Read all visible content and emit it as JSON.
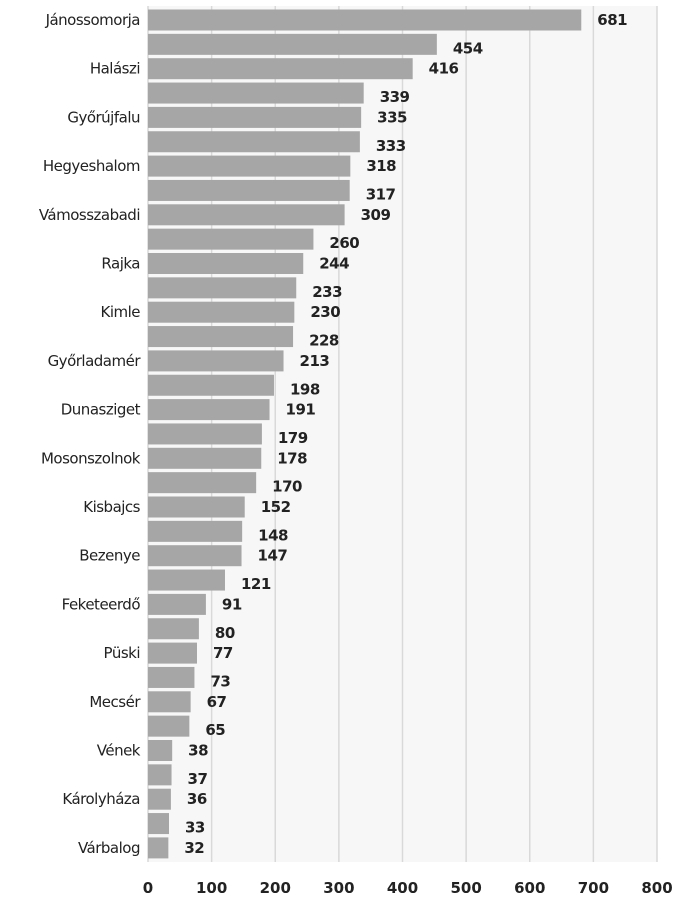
{
  "chart_data": {
    "type": "bar",
    "orientation": "horizontal",
    "categories": [
      "Jánossomorja",
      "",
      "Halászi",
      "",
      "Győrújfalu",
      "",
      "Hegyeshalom",
      "",
      "Vámosszabadi",
      "",
      "Rajka",
      "",
      "Kimle",
      "",
      "Győrladamér",
      "",
      "Dunasziget",
      "",
      "Mosonszolnok",
      "",
      "Kisbajcs",
      "",
      "Bezenye",
      "",
      "Feketeerdő",
      "",
      "Püski",
      "",
      "Mecsér",
      "",
      "Vének",
      "",
      "Károlyháza",
      "",
      "Várbalog"
    ],
    "values": [
      681,
      454,
      416,
      339,
      335,
      333,
      318,
      317,
      309,
      260,
      244,
      233,
      230,
      228,
      213,
      198,
      191,
      179,
      178,
      170,
      152,
      148,
      147,
      121,
      91,
      80,
      77,
      73,
      67,
      65,
      38,
      37,
      36,
      33,
      32
    ],
    "xlim": [
      0,
      800
    ],
    "xticks": [
      0,
      100,
      200,
      300,
      400,
      500,
      600,
      700,
      800
    ],
    "title": "",
    "xlabel": "",
    "ylabel": "",
    "grid": "vertical",
    "legend": "none",
    "bar_color": "#a6a6a6",
    "plot_background": "#f7f7f7",
    "grid_color": "#d9d9d9"
  }
}
